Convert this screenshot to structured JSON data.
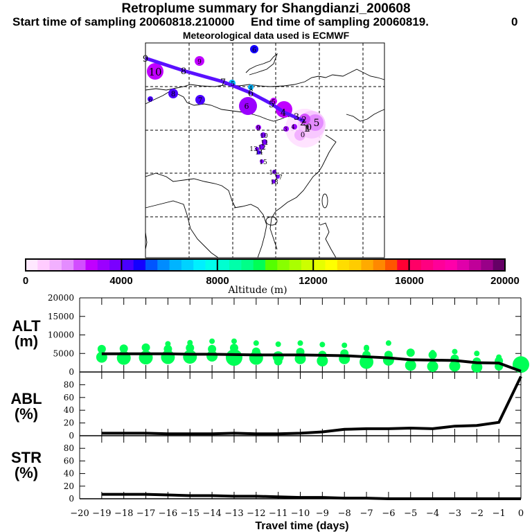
{
  "header": {
    "title": "Retroplume summary for Shangdianzi_200608",
    "sampling_start": "Start time of sampling 20060818.210000",
    "sampling_end": "End time of sampling 20060819.",
    "sampling_end_suffix": "0",
    "met_data": "Meteorological data used is ECMWF"
  },
  "map": {
    "trajectory_labels": [
      "9",
      "8",
      "7",
      "6",
      "5",
      "4",
      "3",
      "2",
      "1",
      "0"
    ],
    "cluster_labels": [
      "10",
      "9",
      "8",
      "7",
      "6",
      "6",
      "5",
      "5",
      "5",
      "4",
      "4",
      "3",
      "2",
      "1",
      "0",
      "6",
      "9",
      "10",
      "11",
      "12",
      "13",
      "14",
      "15",
      "16",
      "17",
      "18"
    ]
  },
  "colorbar": {
    "label": "Altitude (m)",
    "ticks": [
      "0",
      "4000",
      "8000",
      "12000",
      "16000",
      "20000"
    ],
    "range": [
      0,
      20000
    ],
    "colors": [
      "#ffe8ff",
      "#ffccff",
      "#f2b0ff",
      "#e48cff",
      "#d24dff",
      "#c000ff",
      "#9b00ff",
      "#7a00ff",
      "#4a00ff",
      "#1400ff",
      "#0055ff",
      "#008cff",
      "#00b4ff",
      "#00d2ff",
      "#00f0ff",
      "#00ffea",
      "#00ffd0",
      "#00ffaa",
      "#00ff88",
      "#00ff55",
      "#55ff00",
      "#88ff00",
      "#aaff00",
      "#ccff00",
      "#e6ff00",
      "#ffff00",
      "#ffdd00",
      "#ffcc00",
      "#ffaa00",
      "#ff8800",
      "#ff5500",
      "#ff0033",
      "#ff0066",
      "#ff0080",
      "#ff0099",
      "#ff00aa",
      "#e000aa",
      "#c00099",
      "#990088",
      "#660066"
    ]
  },
  "chart_data": [
    {
      "type": "line",
      "panel": "ALT",
      "ylabel": "ALT (m)",
      "ylabel_line1": "ALT",
      "ylabel_line2": "(m)",
      "ylim": [
        0,
        20000
      ],
      "yticks": [
        "0",
        "5000",
        "10000",
        "15000",
        "20000"
      ],
      "xlim": [
        -20,
        0
      ],
      "x": [
        -19,
        -18,
        -17,
        -16,
        -15,
        -14,
        -13,
        -12,
        -11,
        -10,
        -9,
        -8,
        -7,
        -6,
        -5,
        -4,
        -3,
        -2,
        -1,
        0
      ],
      "values": [
        4900,
        4900,
        4900,
        4900,
        4800,
        4800,
        4700,
        4600,
        4600,
        4600,
        4500,
        4400,
        4100,
        3800,
        3300,
        3200,
        3100,
        2500,
        2400,
        200
      ],
      "scatter_color": "#00ff55",
      "scatter": [
        {
          "x": -19,
          "y": [
            4000,
            6200
          ],
          "sizes": [
            3,
            2
          ]
        },
        {
          "x": -18,
          "y": [
            3800,
            6300
          ],
          "sizes": [
            4,
            2
          ]
        },
        {
          "x": -17,
          "y": [
            3900,
            6600,
            5500
          ],
          "sizes": [
            4,
            2,
            1
          ]
        },
        {
          "x": -16,
          "y": [
            4000,
            6200,
            7600
          ],
          "sizes": [
            4,
            2,
            1
          ]
        },
        {
          "x": -15,
          "y": [
            4100,
            6500,
            7900
          ],
          "sizes": [
            4,
            2,
            1
          ]
        },
        {
          "x": -14,
          "y": [
            4300,
            6200,
            8300
          ],
          "sizes": [
            3,
            2,
            1
          ]
        },
        {
          "x": -13,
          "y": [
            3900,
            6500,
            8300
          ],
          "sizes": [
            5,
            2,
            1
          ]
        },
        {
          "x": -12,
          "y": [
            3800,
            5500,
            7800
          ],
          "sizes": [
            4,
            2,
            1
          ]
        },
        {
          "x": -11,
          "y": [
            4100,
            2900,
            7500
          ],
          "sizes": [
            3,
            2,
            1
          ]
        },
        {
          "x": -10,
          "y": [
            3600,
            5400,
            7800
          ],
          "sizes": [
            3,
            2,
            1
          ]
        },
        {
          "x": -9,
          "y": [
            3000,
            4600,
            7400
          ],
          "sizes": [
            3,
            2,
            1
          ]
        },
        {
          "x": -8,
          "y": [
            3600,
            5000,
            7200
          ],
          "sizes": [
            3,
            2,
            1
          ]
        },
        {
          "x": -7,
          "y": [
            2700,
            4600,
            6300,
            6600
          ],
          "sizes": [
            4,
            2,
            1,
            1
          ]
        },
        {
          "x": -6,
          "y": [
            3200,
            4600,
            7800
          ],
          "sizes": [
            3,
            2,
            1
          ]
        },
        {
          "x": -5,
          "y": [
            1800,
            5200
          ],
          "sizes": [
            3,
            2
          ]
        },
        {
          "x": -4,
          "y": [
            1500,
            4600,
            5200
          ],
          "sizes": [
            3,
            2,
            1
          ]
        },
        {
          "x": -3,
          "y": [
            1600,
            3600,
            5500
          ],
          "sizes": [
            3,
            2,
            1
          ]
        },
        {
          "x": -2,
          "y": [
            1300,
            2800,
            5000
          ],
          "sizes": [
            3,
            2,
            1
          ]
        },
        {
          "x": -1,
          "y": [
            1500,
            3000,
            4000
          ],
          "sizes": [
            2,
            2,
            1
          ]
        },
        {
          "x": 0,
          "y": [
            2000
          ],
          "sizes": [
            5
          ]
        }
      ]
    },
    {
      "type": "line",
      "panel": "ABL",
      "ylabel": "ABL (%)",
      "ylabel_line1": "ABL",
      "ylabel_line2": "(%)",
      "ylim": [
        0,
        100
      ],
      "yticks": [
        "0",
        "20",
        "40",
        "60",
        "80"
      ],
      "xlim": [
        -20,
        0
      ],
      "x": [
        -19,
        -18,
        -17,
        -16,
        -15,
        -14,
        -13,
        -12,
        -11,
        -10,
        -9,
        -8,
        -7,
        -6,
        -5,
        -4,
        -3,
        -2,
        -1,
        0
      ],
      "values": [
        4,
        4,
        4,
        3,
        3,
        3,
        4,
        3,
        3,
        4,
        6,
        10,
        11,
        11,
        12,
        11,
        15,
        16,
        21,
        93
      ]
    },
    {
      "type": "line",
      "panel": "STR",
      "ylabel": "STR (%)",
      "ylabel_line1": "STR",
      "ylabel_line2": "(%)",
      "ylim": [
        0,
        100
      ],
      "yticks": [
        "0",
        "20",
        "40",
        "60",
        "80"
      ],
      "xlim": [
        -20,
        0
      ],
      "xlabel": "Travel time (days)",
      "xticks": [
        "−20",
        "−19",
        "−18",
        "−17",
        "−16",
        "−15",
        "−14",
        "−13",
        "−12",
        "−11",
        "−10",
        "−9",
        "−8",
        "−7",
        "−6",
        "−5",
        "−4",
        "−3",
        "−2",
        "−1",
        "0"
      ],
      "x": [
        -19,
        -18,
        -17,
        -16,
        -15,
        -14,
        -13,
        -12,
        -11,
        -10,
        -9,
        -8,
        -7,
        -6,
        -5,
        -4,
        -3,
        -2,
        -1,
        0
      ],
      "values": [
        7,
        7,
        7,
        6,
        5,
        5,
        4,
        4,
        3,
        2,
        2,
        1,
        1,
        0,
        0,
        0,
        0,
        0,
        0,
        0
      ]
    }
  ]
}
